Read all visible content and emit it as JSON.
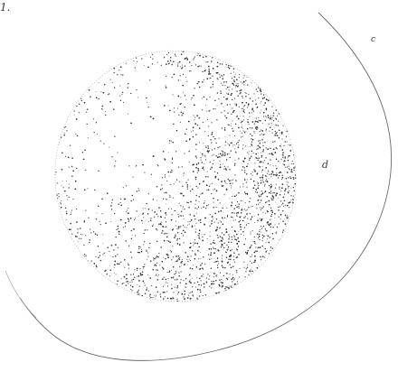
{
  "plate": {
    "label_top_left": "1.",
    "label_upper_right": "c",
    "label_right": "d",
    "ink_color": "#2e2e2e",
    "outline_color": "#555555",
    "paper_color": "#ffffff"
  }
}
